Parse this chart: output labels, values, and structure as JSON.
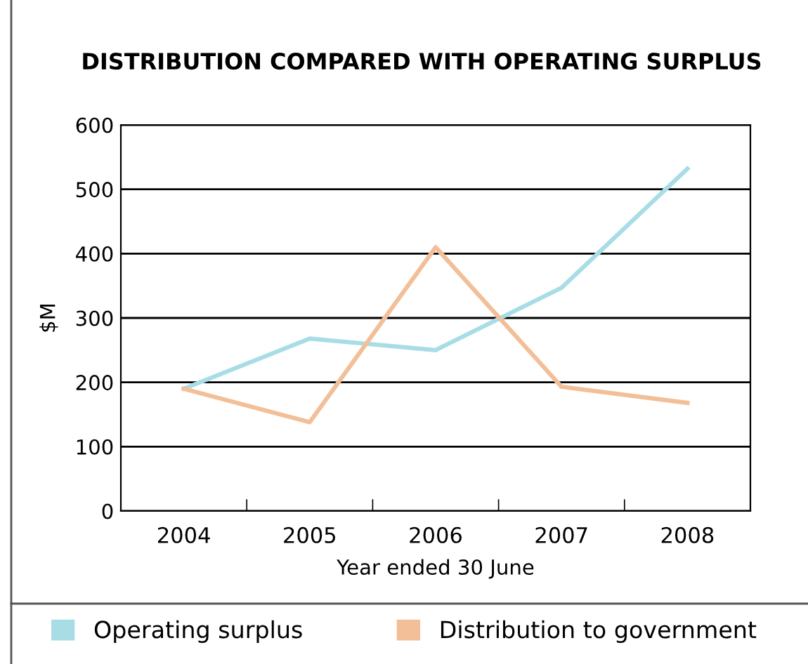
{
  "chart_data": {
    "type": "line",
    "title": "DISTRIBUTION COMPARED WITH OPERATING SURPLUS",
    "xlabel": "Year ended 30 June",
    "ylabel": "$M",
    "categories": [
      "2004",
      "2005",
      "2006",
      "2007",
      "2008"
    ],
    "series": [
      {
        "name": "Operating surplus",
        "color": "#a8dde6",
        "values": [
          190,
          268,
          250,
          347,
          532
        ]
      },
      {
        "name": "Distribution to government",
        "color": "#f2bf98",
        "values": [
          190,
          138,
          410,
          193,
          168
        ]
      }
    ],
    "ylim": [
      0,
      600
    ],
    "yticks": [
      0,
      100,
      200,
      300,
      400,
      500,
      600
    ],
    "grid": "y",
    "legend": "bottom",
    "marker": "none",
    "line_style": "solid"
  }
}
